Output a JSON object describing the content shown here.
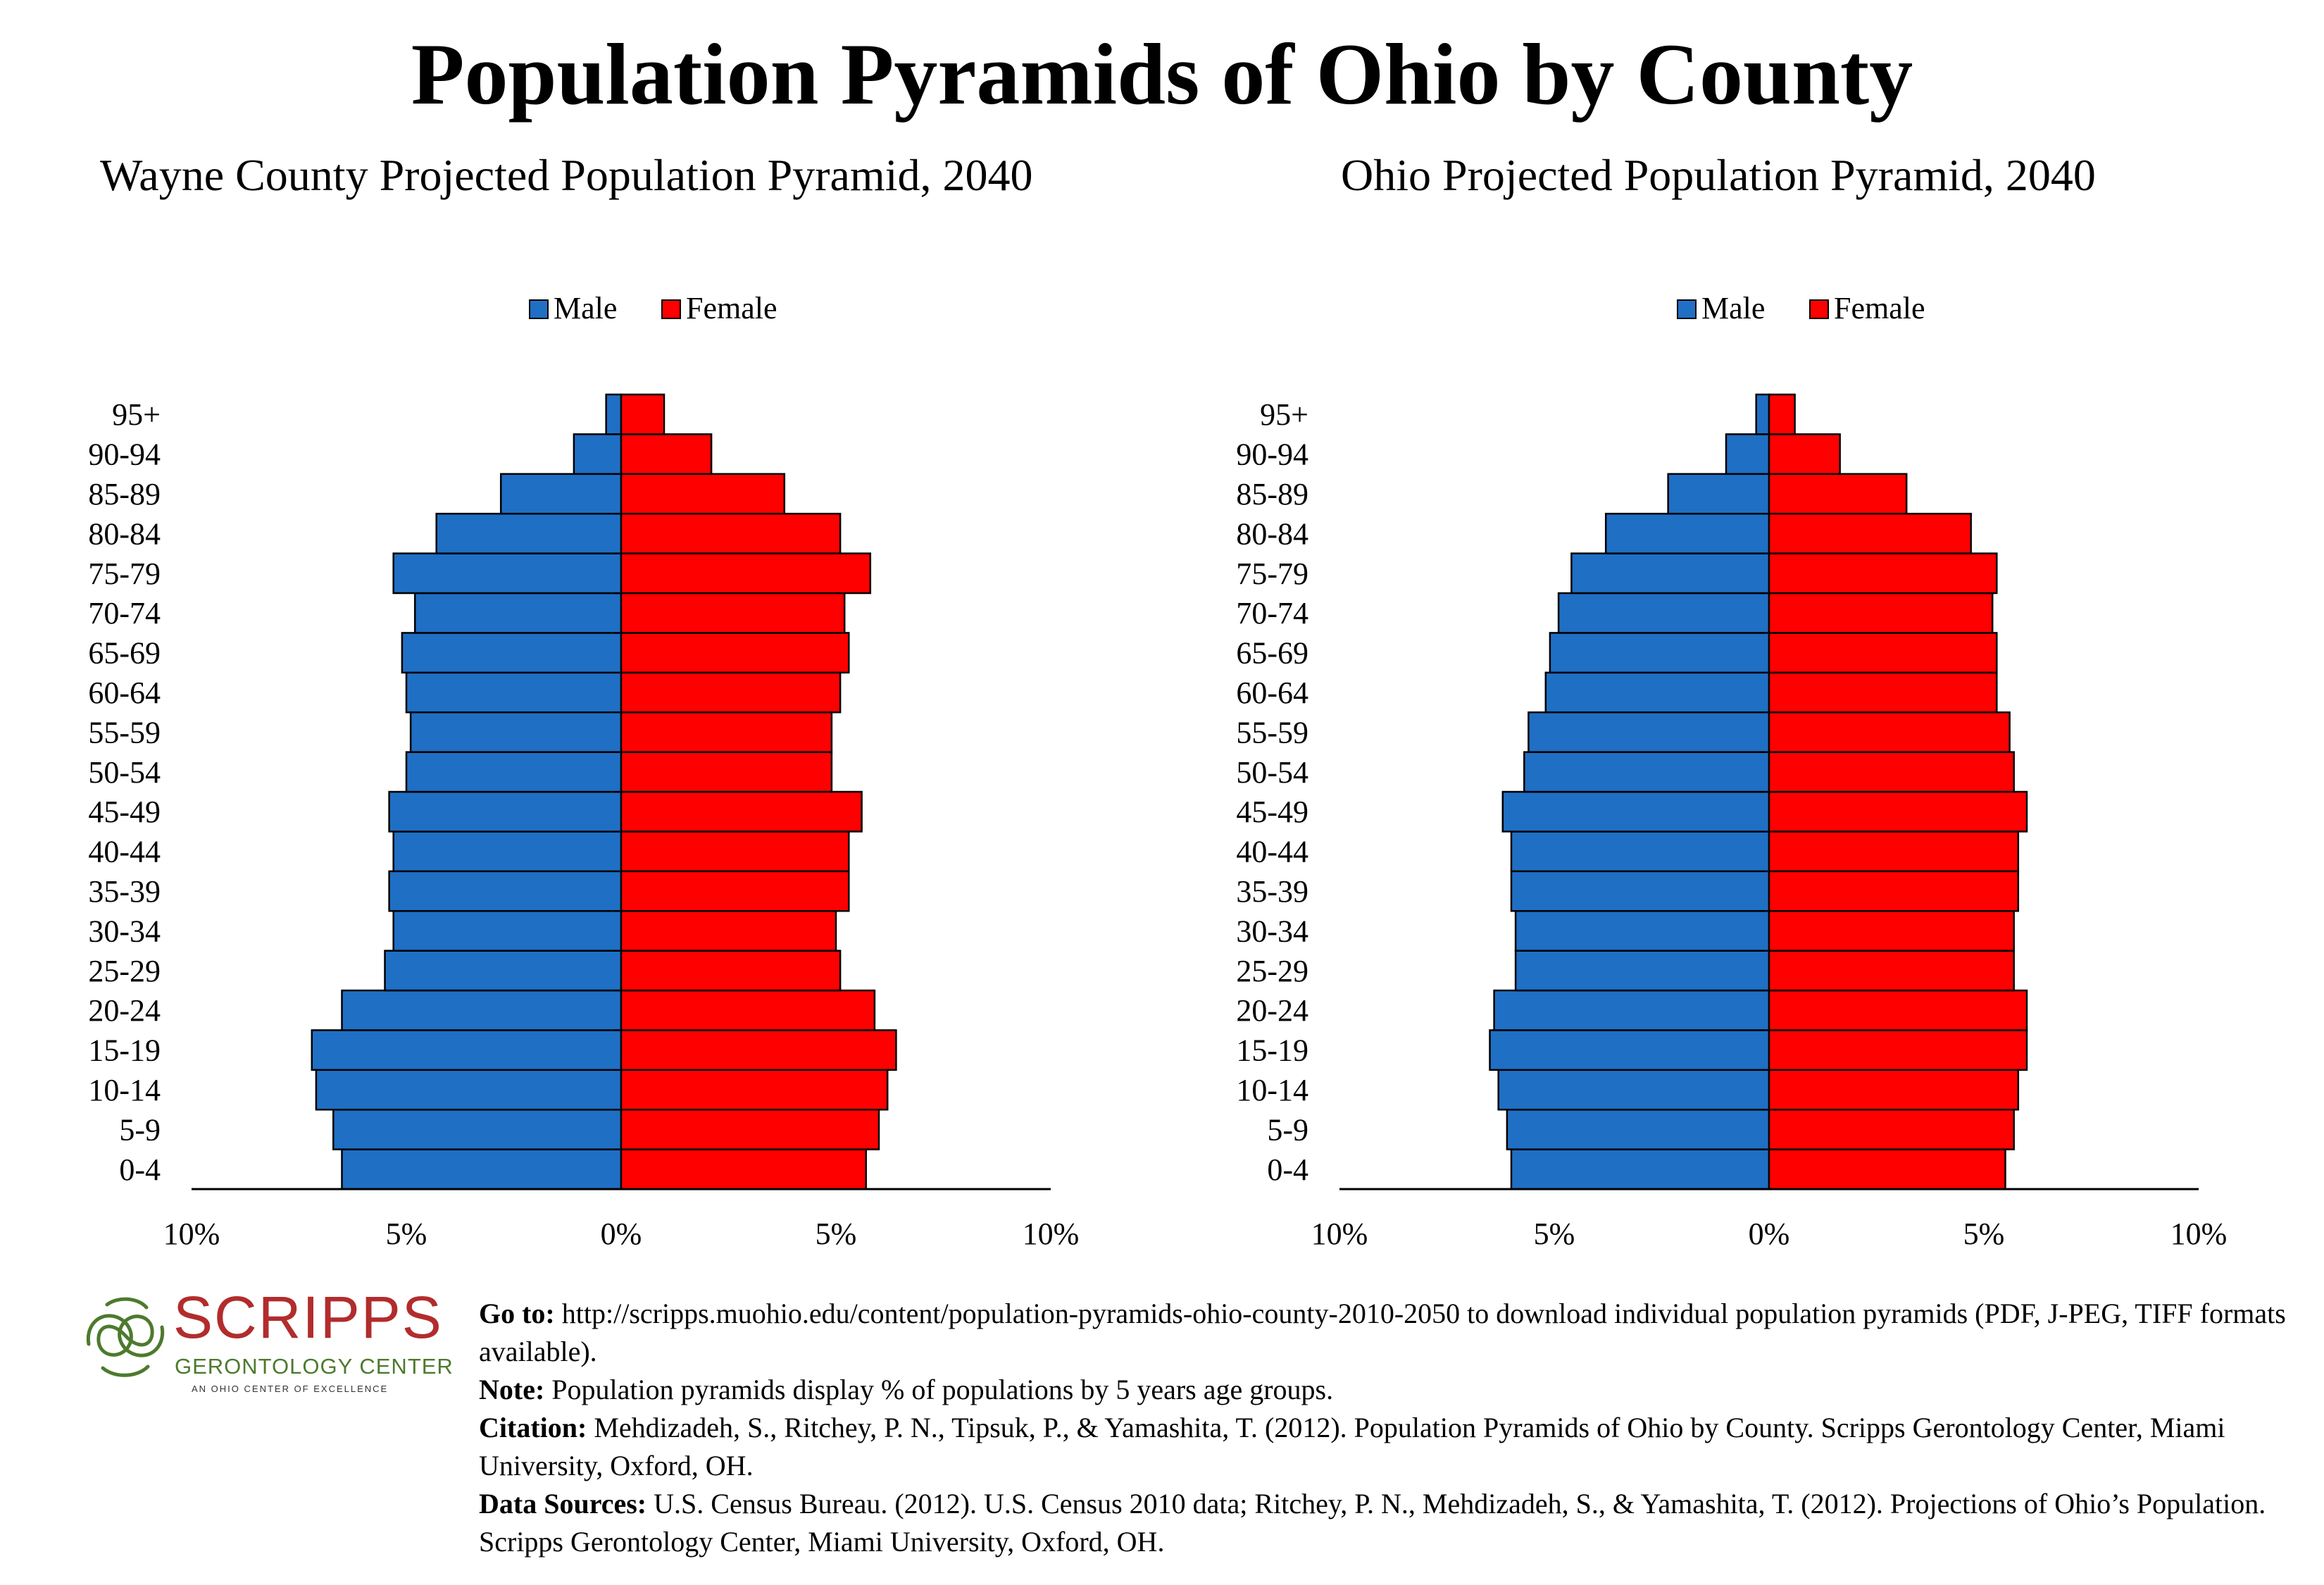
{
  "title": "Population Pyramids of Ohio by County",
  "colors": {
    "male": "#1f6fc4",
    "female": "#ff0000",
    "stroke": "#000000",
    "logo_red": "#b22c2c",
    "logo_green": "#4d7a2e"
  },
  "chart_data": [
    {
      "type": "bar",
      "orientation": "horizontal-pyramid",
      "title": "Wayne County Projected Population Pyramid, 2040",
      "legend": [
        "Male",
        "Female"
      ],
      "legend_position": "top-center",
      "categories": [
        "0-4",
        "5-9",
        "10-14",
        "15-19",
        "20-24",
        "25-29",
        "30-34",
        "35-39",
        "40-44",
        "45-49",
        "50-54",
        "55-59",
        "60-64",
        "65-69",
        "70-74",
        "75-79",
        "80-84",
        "85-89",
        "90-94",
        "95+"
      ],
      "series": [
        {
          "name": "Male",
          "values": [
            6.5,
            6.7,
            7.1,
            7.2,
            6.5,
            5.5,
            5.3,
            5.4,
            5.3,
            5.4,
            5.0,
            4.9,
            5.0,
            5.1,
            4.8,
            5.3,
            4.3,
            2.8,
            1.1,
            0.35
          ]
        },
        {
          "name": "Female",
          "values": [
            5.7,
            6.0,
            6.2,
            6.4,
            5.9,
            5.1,
            5.0,
            5.3,
            5.3,
            5.6,
            4.9,
            4.9,
            5.1,
            5.3,
            5.2,
            5.8,
            5.1,
            3.8,
            2.1,
            1.0
          ]
        }
      ],
      "x_ticks": [
        "10%",
        "5%",
        "0%",
        "5%",
        "10%"
      ],
      "xlim": [
        -10,
        10
      ]
    },
    {
      "type": "bar",
      "orientation": "horizontal-pyramid",
      "title": "Ohio Projected Population Pyramid, 2040",
      "legend": [
        "Male",
        "Female"
      ],
      "legend_position": "top-center",
      "categories": [
        "0-4",
        "5-9",
        "10-14",
        "15-19",
        "20-24",
        "25-29",
        "30-34",
        "35-39",
        "40-44",
        "45-49",
        "50-54",
        "55-59",
        "60-64",
        "65-69",
        "70-74",
        "75-79",
        "80-84",
        "85-89",
        "90-94",
        "95+"
      ],
      "series": [
        {
          "name": "Male",
          "values": [
            6.0,
            6.1,
            6.3,
            6.5,
            6.4,
            5.9,
            5.9,
            6.0,
            6.0,
            6.2,
            5.7,
            5.6,
            5.2,
            5.1,
            4.9,
            4.6,
            3.8,
            2.35,
            1.0,
            0.3
          ]
        },
        {
          "name": "Female",
          "values": [
            5.5,
            5.7,
            5.8,
            6.0,
            6.0,
            5.7,
            5.7,
            5.8,
            5.8,
            6.0,
            5.7,
            5.6,
            5.3,
            5.3,
            5.2,
            5.3,
            4.7,
            3.2,
            1.65,
            0.6
          ]
        }
      ],
      "x_ticks": [
        "10%",
        "5%",
        "0%",
        "5%",
        "10%"
      ],
      "xlim": [
        -10,
        10
      ]
    }
  ],
  "logo": {
    "word": "SCRIPPS",
    "subtitle": "GERONTOLOGY CENTER",
    "tagline": "AN OHIO CENTER OF EXCELLENCE"
  },
  "notes": {
    "goto_label": "Go to:",
    "goto_text": " http://scripps.muohio.edu/content/population-pyramids-ohio-county-2010-2050 to download individual population pyramids (PDF, J-PEG, TIFF formats available).",
    "note_label": "Note:",
    "note_text": " Population pyramids display % of populations by 5 years age groups.",
    "citation_label": "Citation:",
    "citation_text": " Mehdizadeh, S., Ritchey, P. N., Tipsuk, P., & Yamashita, T. (2012). Population Pyramids of Ohio by County. Scripps Gerontology Center, Miami University, Oxford, OH.",
    "sources_label": "Data Sources:",
    "sources_text": " U.S. Census Bureau. (2012). U.S. Census 2010 data; Ritchey, P. N., Mehdizadeh, S., & Yamashita, T. (2012). Projections of Ohio’s Population. Scripps Gerontology Center, Miami University, Oxford, OH."
  }
}
